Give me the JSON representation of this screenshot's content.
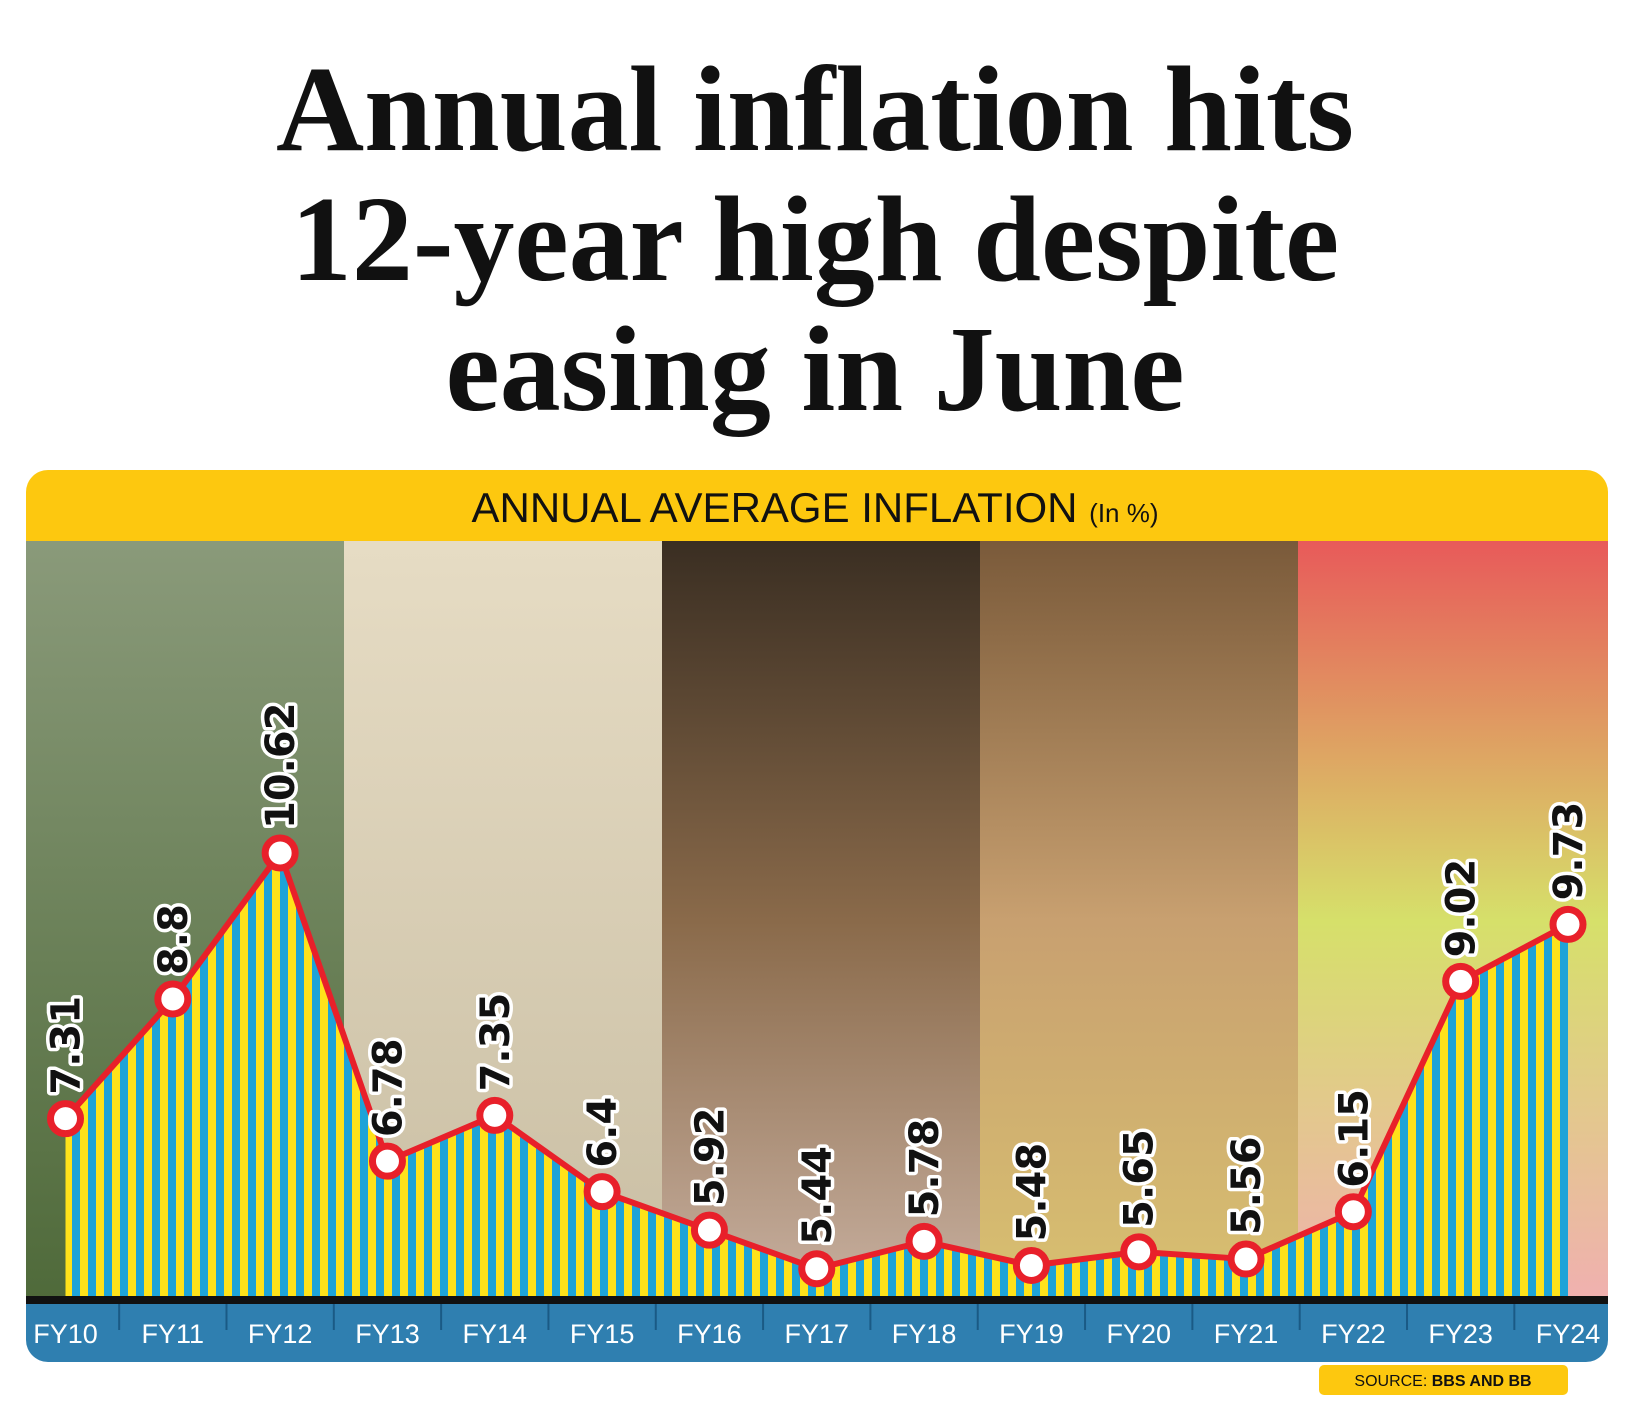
{
  "chart_data": {
    "type": "area-line",
    "title": [
      "Annual inflation hits",
      "12-year high despite",
      "easing in June"
    ],
    "subtitle": "ANNUAL AVERAGE INFLATION",
    "unit": "(In %)",
    "categories": [
      "FY10",
      "FY11",
      "FY12",
      "FY13",
      "FY14",
      "FY15",
      "FY16",
      "FY17",
      "FY18",
      "FY19",
      "FY20",
      "FY21",
      "FY22",
      "FY23",
      "FY24"
    ],
    "values": [
      7.31,
      8.8,
      10.62,
      6.78,
      7.35,
      6.4,
      5.92,
      5.44,
      5.78,
      5.48,
      5.65,
      5.56,
      6.15,
      9.02,
      9.73
    ],
    "ylim": [
      5,
      11
    ],
    "line_color": "#e8202a",
    "stripe_colors": [
      "#ffe21a",
      "#1ea3d8"
    ],
    "source_label": "SOURCE:",
    "source": "BBS AND BB"
  }
}
